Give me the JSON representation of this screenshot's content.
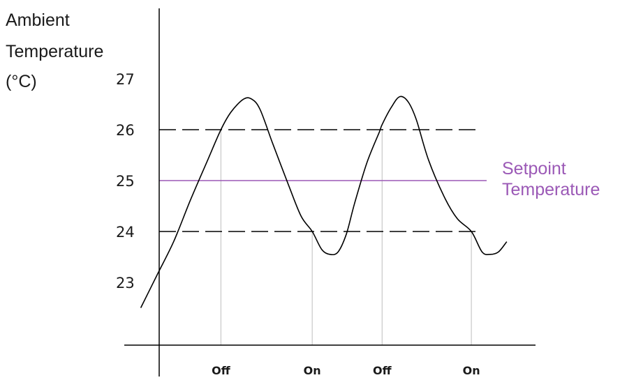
{
  "chart_data": {
    "type": "line",
    "ylabel_lines": [
      "Ambient",
      "Temperature",
      "(°C)"
    ],
    "yticks": [
      "27",
      "26",
      "25",
      "24",
      "23"
    ],
    "ylim": [
      22,
      27.5
    ],
    "deadband": [
      24,
      26
    ],
    "setpoint": {
      "value": 25,
      "label_lines": [
        "Setpoint",
        "Temperature"
      ],
      "color": "#9b59b6"
    },
    "events": [
      {
        "label": "Off",
        "t": 0.235,
        "temperature": 26
      },
      {
        "label": "On",
        "t": 0.457,
        "temperature": 24
      },
      {
        "label": "Off",
        "t": 0.627,
        "temperature": 26
      },
      {
        "label": "On",
        "t": 0.844,
        "temperature": 24
      }
    ],
    "series": [
      {
        "t": [
          0.04,
          0.08,
          0.12,
          0.16,
          0.2,
          0.235,
          0.26,
          0.29,
          0.31,
          0.33,
          0.36,
          0.4,
          0.43,
          0.457,
          0.48,
          0.5,
          0.52,
          0.54,
          0.56,
          0.59,
          0.62,
          0.627,
          0.65,
          0.67,
          0.69,
          0.71,
          0.74,
          0.78,
          0.81,
          0.844,
          0.87,
          0.89,
          0.91,
          0.93
        ],
        "temperature": [
          22.5,
          23.15,
          23.8,
          24.6,
          25.35,
          26.0,
          26.35,
          26.6,
          26.6,
          26.4,
          25.75,
          24.9,
          24.3,
          24.0,
          23.65,
          23.55,
          23.6,
          23.95,
          24.55,
          25.35,
          25.95,
          26.1,
          26.45,
          26.65,
          26.55,
          26.2,
          25.4,
          24.65,
          24.25,
          24.0,
          23.6,
          23.55,
          23.6,
          23.8
        ]
      }
    ],
    "colors": {
      "curve": "#000000",
      "axis": "#000000",
      "deadband": "#000000",
      "guide": "#c8c8c8"
    }
  }
}
